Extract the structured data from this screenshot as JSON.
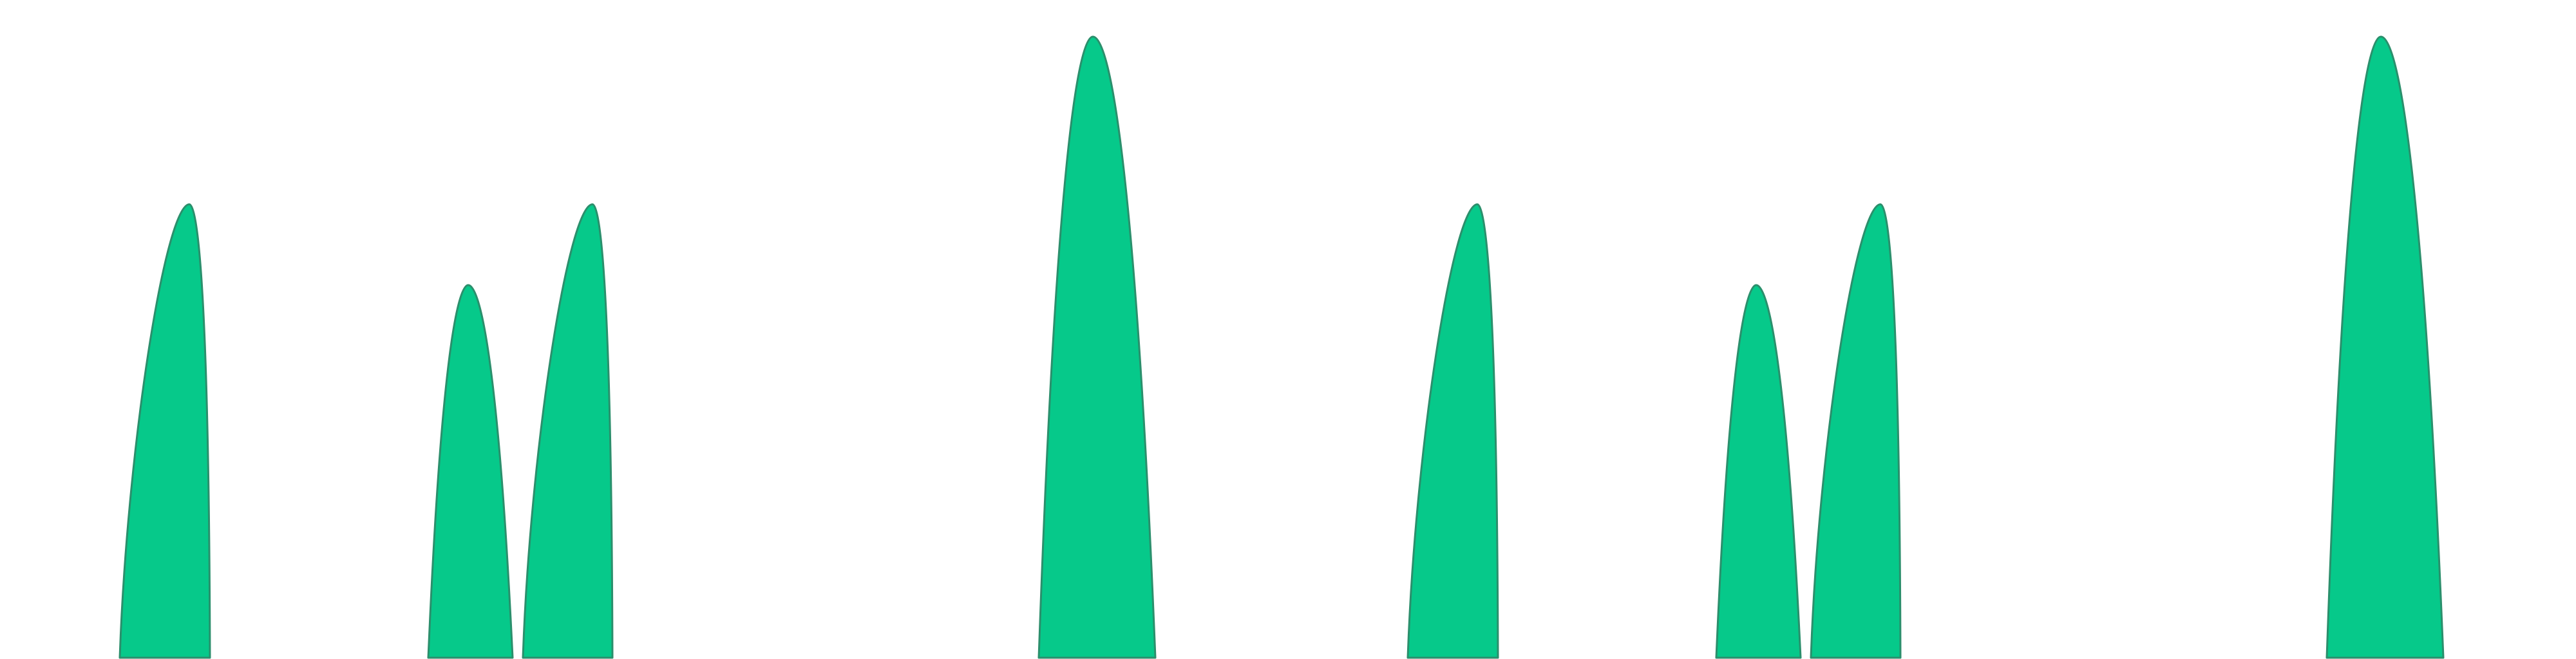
{
  "theme": {
    "background": "#ffffff",
    "fill": "#06c98a",
    "stroke": "#2b8f6c"
  },
  "pattern": {
    "repeats": 2,
    "peaks": [
      {
        "name": "peak-a",
        "shape": "left-skewed",
        "level": 0.73
      },
      {
        "name": "peak-b",
        "shape": "symmetric",
        "level": 0.6
      },
      {
        "name": "peak-c",
        "shape": "left-skewed",
        "level": 0.73
      },
      {
        "name": "peak-d",
        "shape": "symmetric",
        "level": 1.0
      }
    ]
  }
}
